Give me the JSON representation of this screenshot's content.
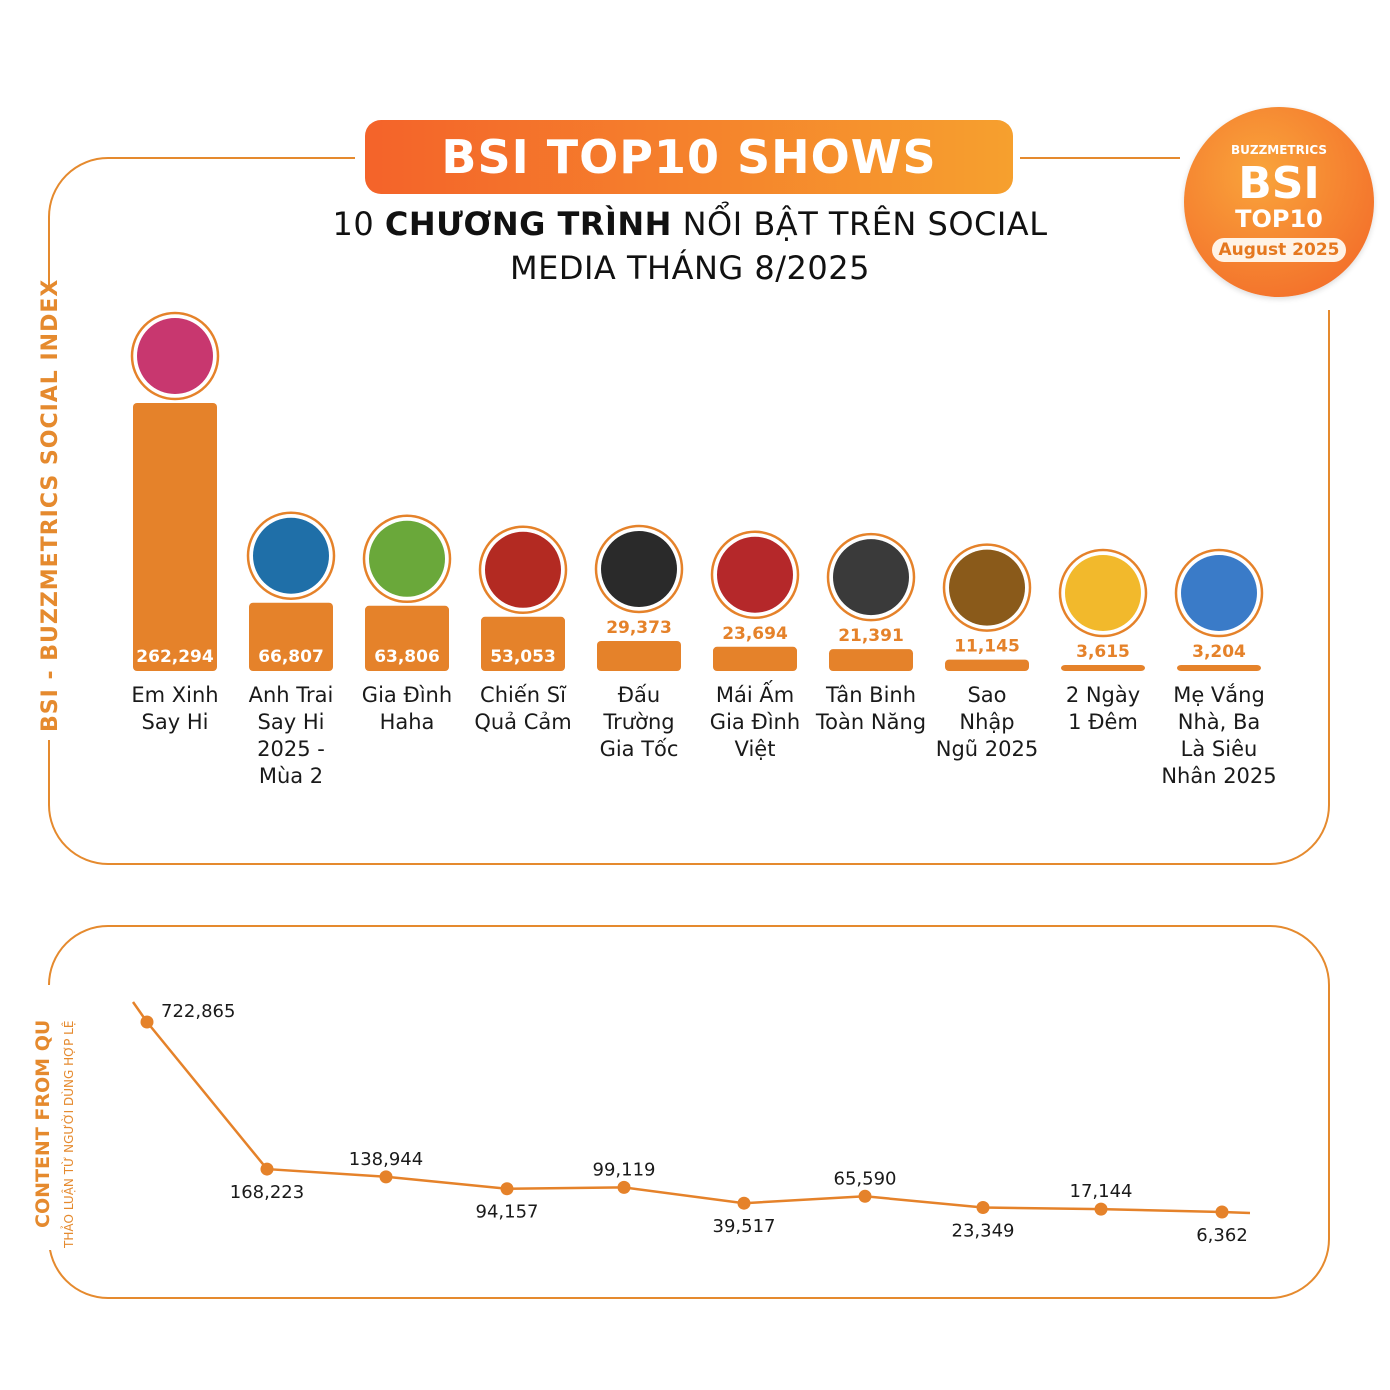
{
  "header": {
    "title": "BSI TOP10 SHOWS",
    "subtitle_bold": "10 CHƯƠNG TRÌNH",
    "subtitle_prefix": "10 ",
    "subtitle_bold_part": "CHƯƠNG TRÌNH",
    "subtitle_rest": " NỔI BẬT TRÊN SOCIAL MEDIA THÁNG 8/2025"
  },
  "badge": {
    "brand": "BUZZMETRICS",
    "bsi": "BSI",
    "top10": "TOP10",
    "month": "August 2025"
  },
  "side_labels": {
    "top": "BSI - BUZZMETRICS SOCIAL INDEX",
    "bottom_main": "CONTENT FROM QU",
    "bottom_sub": "THẢO LUẬN TỪ NGƯỜI DÙNG HỢP LỆ"
  },
  "colors": {
    "accent": "#e58a2e",
    "bar": "#e5822a",
    "line": "#e5822a",
    "banner_start": "#f4632a",
    "banner_end": "#f6a02e"
  },
  "chart_data": [
    {
      "type": "bar",
      "categories": [
        "Em Xinh Say Hi",
        "Anh Trai Say Hi 2025 - Mùa 2",
        "Gia Đình Haha",
        "Chiến Sĩ Quả Cảm",
        "Đấu Trường Gia Tốc",
        "Mái Ấm Gia Đình Việt",
        "Tân Binh Toàn Năng",
        "Sao Nhập Ngũ 2025",
        "2 Ngày 1 Đêm",
        "Mẹ Vắng Nhà, Ba Là Siêu Nhân 2025"
      ],
      "value_labels": [
        "262,294",
        "66,807",
        "63,806",
        "53,053",
        "29,373",
        "23,694",
        "21,391",
        "11,145",
        "3,615",
        "3,204"
      ],
      "values": [
        262294,
        66807,
        63806,
        53053,
        29373,
        23694,
        21391,
        11145,
        3615,
        3204
      ],
      "ylabel": "BSI - BUZZMETRICS SOCIAL INDEX",
      "logo_icons": [
        "em-xinh-say-hi-logo",
        "anh-trai-say-hi-logo",
        "gia-dinh-haha-logo",
        "chien-si-qua-cam-logo",
        "dau-truong-gia-toc-logo",
        "mai-am-gia-dinh-viet-logo",
        "tan-binh-toan-nang-logo",
        "sao-nhap-ngu-logo",
        "2-ngay-1-dem-logo",
        "me-vang-nha-logo"
      ],
      "logo_colors": [
        "#c8376f",
        "#1f6fa8",
        "#6aa83a",
        "#b32a22",
        "#2a2a2a",
        "#b5282a",
        "#3a3a3a",
        "#8a5a1a",
        "#f2b92c",
        "#3a7bc8"
      ]
    },
    {
      "type": "line",
      "value_labels": [
        "722,865",
        "168,223",
        "138,944",
        "94,157",
        "99,119",
        "39,517",
        "65,590",
        "23,349",
        "17,144",
        "6,362"
      ],
      "values": [
        722865,
        168223,
        138944,
        94157,
        99119,
        39517,
        65590,
        23349,
        17144,
        6362
      ],
      "ylabel": "CONTENT FROM QU",
      "ylabel_sub": "THẢO LUẬN TỪ NGƯỜI DÙNG HỢP LỆ"
    }
  ],
  "category_lines": [
    [
      "Em Xinh",
      "Say Hi"
    ],
    [
      "Anh Trai",
      "Say Hi",
      "2025 -",
      "Mùa 2"
    ],
    [
      "Gia Đình",
      "Haha"
    ],
    [
      "Chiến Sĩ",
      "Quả Cảm"
    ],
    [
      "Đấu",
      "Trường",
      "Gia Tốc"
    ],
    [
      "Mái Ấm",
      "Gia Đình",
      "Việt"
    ],
    [
      "Tân Binh",
      "Toàn Năng"
    ],
    [
      "Sao",
      "Nhập",
      "Ngũ 2025"
    ],
    [
      "2 Ngày",
      "1 Đêm"
    ],
    [
      "Mẹ Vắng",
      "Nhà, Ba",
      "Là Siêu",
      "Nhân 2025"
    ]
  ]
}
